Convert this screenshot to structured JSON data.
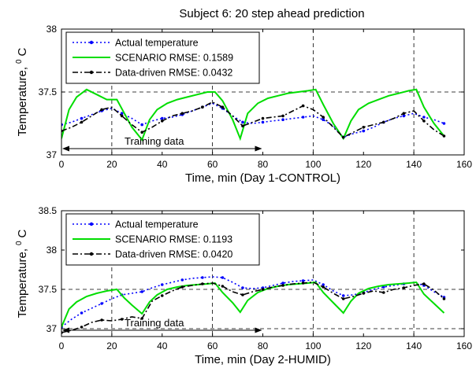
{
  "figure_title": "Subject 6: 20 step ahead prediction",
  "chart_data": [
    {
      "type": "line",
      "xlabel": "Time, min (Day 1-CONTROL)",
      "ylabel": "Temperature, ⁰ C",
      "ylabel_parts": {
        "text": "Temperature,",
        "sup": "0",
        "unit": "C"
      },
      "xlim": [
        0,
        160
      ],
      "ylim": [
        37,
        38
      ],
      "xticks": [
        0,
        20,
        40,
        60,
        80,
        100,
        120,
        140,
        160
      ],
      "yticks": [
        37,
        37.5,
        38
      ],
      "ytick_labels": [
        "37",
        "37.5",
        "38"
      ],
      "vlines": [
        20,
        60,
        100,
        140
      ],
      "hlines": [
        37.5
      ],
      "grid": "dashed",
      "legend_position": "top-left",
      "annotation": {
        "text": "Training data",
        "arrow_from": 0,
        "arrow_to": 80,
        "y": 37.05
      },
      "series": [
        {
          "name": "Actual temperature",
          "color": "#0000ff",
          "style": "dotted-marker",
          "x": [
            0,
            4,
            8,
            12,
            16,
            20,
            24,
            28,
            32,
            36,
            40,
            44,
            48,
            52,
            56,
            60,
            64,
            68,
            72,
            76,
            80,
            84,
            88,
            92,
            96,
            100,
            104,
            108,
            112,
            116,
            120,
            124,
            128,
            132,
            136,
            140,
            144,
            148,
            152
          ],
          "y": [
            37.24,
            37.26,
            37.29,
            37.32,
            37.35,
            37.37,
            37.33,
            37.29,
            37.24,
            37.27,
            37.29,
            37.3,
            37.32,
            37.35,
            37.38,
            37.41,
            37.37,
            37.31,
            37.26,
            37.25,
            37.26,
            37.27,
            37.28,
            37.29,
            37.3,
            37.31,
            37.28,
            37.23,
            37.14,
            37.17,
            37.19,
            37.22,
            37.26,
            37.29,
            37.31,
            37.33,
            37.3,
            37.28,
            37.25
          ]
        },
        {
          "name": "SCENARIO RMSE: 0.1589",
          "color": "#00dd00",
          "style": "solid",
          "x": [
            0,
            3,
            6,
            10,
            14,
            18,
            22,
            25,
            28,
            32,
            35,
            38,
            42,
            46,
            50,
            54,
            58,
            61,
            64,
            68,
            71,
            74,
            78,
            82,
            86,
            90,
            94,
            98,
            101,
            104,
            108,
            112,
            115,
            118,
            122,
            126,
            130,
            134,
            138,
            141,
            144,
            148,
            152
          ],
          "y": [
            37.13,
            37.36,
            37.46,
            37.52,
            37.48,
            37.44,
            37.44,
            37.33,
            37.22,
            37.12,
            37.28,
            37.36,
            37.41,
            37.44,
            37.46,
            37.48,
            37.5,
            37.5,
            37.43,
            37.28,
            37.13,
            37.33,
            37.41,
            37.45,
            37.47,
            37.49,
            37.5,
            37.51,
            37.52,
            37.4,
            37.25,
            37.13,
            37.27,
            37.36,
            37.41,
            37.44,
            37.47,
            37.49,
            37.51,
            37.52,
            37.38,
            37.25,
            37.15
          ]
        },
        {
          "name": "Data-driven RMSE: 0.0432",
          "color": "#000000",
          "style": "dashdot-marker",
          "x": [
            0,
            4,
            8,
            12,
            16,
            20,
            24,
            28,
            32,
            36,
            40,
            44,
            48,
            52,
            56,
            60,
            64,
            68,
            72,
            76,
            80,
            84,
            88,
            92,
            96,
            100,
            104,
            108,
            112,
            116,
            120,
            124,
            128,
            132,
            136,
            140,
            144,
            148,
            152
          ],
          "y": [
            37.19,
            37.22,
            37.26,
            37.31,
            37.36,
            37.38,
            37.31,
            37.24,
            37.18,
            37.22,
            37.27,
            37.31,
            37.33,
            37.35,
            37.38,
            37.42,
            37.38,
            37.31,
            37.23,
            37.26,
            37.29,
            37.3,
            37.31,
            37.35,
            37.39,
            37.36,
            37.3,
            37.22,
            37.14,
            37.18,
            37.22,
            37.24,
            37.26,
            37.29,
            37.33,
            37.35,
            37.27,
            37.2,
            37.15
          ]
        }
      ]
    },
    {
      "type": "line",
      "xlabel": "Time, min (Day 2-HUMID)",
      "ylabel": "Temperature, ⁰ C",
      "ylabel_parts": {
        "text": "Temperature,",
        "sup": "0",
        "unit": "C"
      },
      "xlim": [
        0,
        160
      ],
      "ylim": [
        36.9,
        38.5
      ],
      "xticks": [
        0,
        20,
        40,
        60,
        80,
        100,
        120,
        140,
        160
      ],
      "yticks": [
        37,
        37.5,
        38,
        38.5
      ],
      "ytick_labels": [
        "37",
        "37.5",
        "38",
        "38.5"
      ],
      "vlines": [
        20,
        60,
        100,
        140
      ],
      "hlines": [
        37,
        37.5
      ],
      "grid": "dashed",
      "legend_position": "top-left",
      "annotation": {
        "text": "Training data",
        "arrow_from": 0,
        "arrow_to": 80,
        "y": 36.98
      },
      "series": [
        {
          "name": "Actual temperature",
          "color": "#0000ff",
          "style": "dotted-marker",
          "x": [
            0,
            4,
            8,
            12,
            16,
            20,
            24,
            28,
            32,
            36,
            40,
            44,
            48,
            52,
            56,
            60,
            64,
            68,
            72,
            76,
            80,
            84,
            88,
            92,
            96,
            100,
            104,
            108,
            112,
            116,
            120,
            124,
            128,
            132,
            136,
            140,
            144,
            148,
            152
          ],
          "y": [
            37.02,
            37.12,
            37.2,
            37.26,
            37.32,
            37.38,
            37.43,
            37.45,
            37.47,
            37.52,
            37.56,
            37.59,
            37.62,
            37.64,
            37.65,
            37.66,
            37.65,
            37.59,
            37.52,
            37.51,
            37.52,
            37.55,
            37.58,
            37.6,
            37.61,
            37.62,
            37.56,
            37.48,
            37.42,
            37.43,
            37.46,
            37.5,
            37.53,
            37.55,
            37.57,
            37.59,
            37.55,
            37.47,
            37.4
          ]
        },
        {
          "name": "SCENARIO RMSE: 0.1193",
          "color": "#00dd00",
          "style": "solid",
          "x": [
            0,
            3,
            6,
            10,
            14,
            18,
            22,
            25,
            28,
            32,
            35,
            38,
            42,
            46,
            50,
            54,
            58,
            61,
            64,
            68,
            71,
            74,
            78,
            82,
            86,
            90,
            94,
            98,
            101,
            104,
            108,
            112,
            115,
            118,
            122,
            126,
            130,
            134,
            138,
            141,
            144,
            148,
            152
          ],
          "y": [
            37.02,
            37.25,
            37.34,
            37.41,
            37.45,
            37.48,
            37.5,
            37.39,
            37.3,
            37.19,
            37.34,
            37.43,
            37.5,
            37.53,
            37.55,
            37.56,
            37.57,
            37.58,
            37.46,
            37.33,
            37.21,
            37.36,
            37.46,
            37.51,
            37.54,
            37.56,
            37.57,
            37.58,
            37.59,
            37.46,
            37.33,
            37.2,
            37.35,
            37.45,
            37.51,
            37.54,
            37.56,
            37.57,
            37.58,
            37.59,
            37.44,
            37.32,
            37.2
          ]
        },
        {
          "name": "Data-driven RMSE: 0.0420",
          "color": "#000000",
          "style": "dashdot-marker",
          "x": [
            0,
            4,
            8,
            12,
            16,
            20,
            24,
            28,
            32,
            36,
            40,
            44,
            48,
            52,
            56,
            60,
            64,
            68,
            72,
            76,
            80,
            84,
            88,
            92,
            96,
            100,
            104,
            108,
            112,
            116,
            120,
            124,
            128,
            132,
            136,
            140,
            144,
            148,
            152
          ],
          "y": [
            36.95,
            36.98,
            37.02,
            37.08,
            37.11,
            37.1,
            37.12,
            37.15,
            37.13,
            37.35,
            37.42,
            37.48,
            37.53,
            37.55,
            37.57,
            37.58,
            37.54,
            37.47,
            37.43,
            37.47,
            37.5,
            37.53,
            37.55,
            37.57,
            37.58,
            37.59,
            37.53,
            37.45,
            37.38,
            37.41,
            37.45,
            37.48,
            37.46,
            37.5,
            37.52,
            37.55,
            37.57,
            37.49,
            37.38
          ]
        }
      ]
    }
  ]
}
